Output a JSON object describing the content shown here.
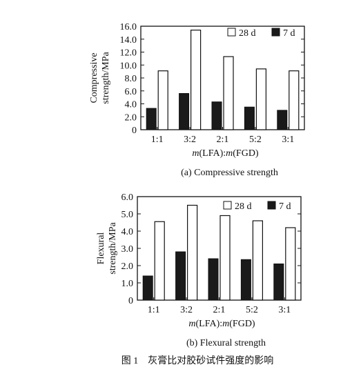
{
  "figure_caption": "图 1　灰膏比对胶砂试件强度的影响",
  "chart_data": [
    {
      "type": "bar",
      "caption": "(a) Compressive strength",
      "xlabel_parts": [
        {
          "text": "m",
          "italic": true
        },
        {
          "text": "(LFA):",
          "italic": false
        },
        {
          "text": "m",
          "italic": true
        },
        {
          "text": "(FGD)",
          "italic": false
        }
      ],
      "ylabel_lines": [
        "Compressive",
        "strength/MPa"
      ],
      "categories": [
        "1:1",
        "3:2",
        "2:1",
        "5:2",
        "3:1"
      ],
      "ylim": [
        0,
        16
      ],
      "yticks": [
        "0",
        "2.0",
        "4.0",
        "6.0",
        "8.0",
        "10.0",
        "12.0",
        "14.0",
        "16.0"
      ],
      "grid": false,
      "legend_position": "top-right",
      "series": [
        {
          "name": "7 d",
          "color": "#1a1a1a",
          "fill_style": "solid",
          "values": [
            3.3,
            5.6,
            4.3,
            3.5,
            3.0
          ]
        },
        {
          "name": "28 d",
          "color": "#ffffff",
          "fill_style": "hollow",
          "values": [
            9.1,
            15.4,
            11.3,
            9.4,
            9.1
          ]
        }
      ]
    },
    {
      "type": "bar",
      "caption": "(b) Flexural strength",
      "xlabel_parts": [
        {
          "text": "m",
          "italic": true
        },
        {
          "text": "(LFA):",
          "italic": false
        },
        {
          "text": "m",
          "italic": true
        },
        {
          "text": "(FGD)",
          "italic": false
        }
      ],
      "ylabel_lines": [
        "Flexural",
        "strength/MPa"
      ],
      "categories": [
        "1:1",
        "3:2",
        "2:1",
        "5:2",
        "3:1"
      ],
      "ylim": [
        0,
        6
      ],
      "yticks": [
        "0",
        "1.0",
        "2.0",
        "3.0",
        "4.0",
        "5.0",
        "6.0"
      ],
      "grid": false,
      "legend_position": "top-right",
      "series": [
        {
          "name": "7 d",
          "color": "#1a1a1a",
          "fill_style": "solid",
          "values": [
            1.4,
            2.8,
            2.4,
            2.35,
            2.1
          ]
        },
        {
          "name": "28 d",
          "color": "#ffffff",
          "fill_style": "hollow",
          "values": [
            4.55,
            5.5,
            4.9,
            4.6,
            4.2
          ]
        }
      ]
    }
  ]
}
